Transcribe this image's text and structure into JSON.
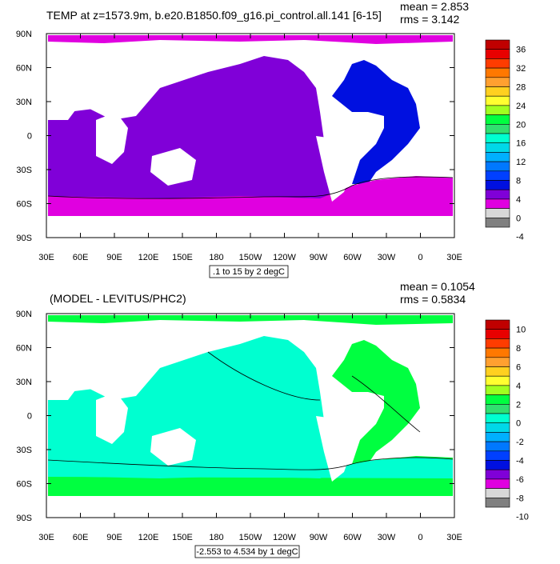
{
  "panels": [
    {
      "title": "TEMP at z=1573.9m, b.e20.B1850.f09_g16.pi_control.all.141 [6-15]",
      "mean": "mean = 2.853",
      "rms": "rms = 3.142",
      "contour_note": ".1 to 15 by 2 degC",
      "colorbar": {
        "labels": [
          "36",
          "32",
          "28",
          "24",
          "20",
          "16",
          "12",
          "8",
          "4",
          "0",
          "-4"
        ],
        "colors": [
          "#c00000",
          "#e80000",
          "#ff3c00",
          "#ff7800",
          "#ffa030",
          "#ffd020",
          "#ffff30",
          "#a0ff20",
          "#00ff40",
          "#30e070",
          "#00ffd0",
          "#00d8e8",
          "#00b0ff",
          "#0078ff",
          "#0040ff",
          "#0010e0",
          "#8000d8",
          "#e000e0",
          "#d8d8d8",
          "#808080"
        ]
      }
    },
    {
      "title": "(MODEL - LEVITUS/PHC2)",
      "mean": "mean = 0.1054",
      "rms": "rms = 0.5834",
      "contour_note": "-2.553 to 4.534 by 1 degC",
      "colorbar": {
        "labels": [
          "10",
          "8",
          "6",
          "4",
          "2",
          "0",
          "-2",
          "-4",
          "-6",
          "-8",
          "-10"
        ],
        "colors": [
          "#c00000",
          "#e80000",
          "#ff3c00",
          "#ff7800",
          "#ffa030",
          "#ffd020",
          "#ffff30",
          "#a0ff20",
          "#00ff40",
          "#30e070",
          "#00ffd0",
          "#00d8e8",
          "#00b0ff",
          "#0078ff",
          "#0040ff",
          "#0010e0",
          "#8000d8",
          "#e000e0",
          "#d8d8d8",
          "#808080"
        ]
      }
    }
  ],
  "axes": {
    "lat_labels": [
      "90N",
      "60N",
      "30N",
      "0",
      "30S",
      "60S",
      "90S"
    ],
    "lon_labels": [
      "30E",
      "60E",
      "90E",
      "120E",
      "150E",
      "180",
      "150W",
      "120W",
      "90W",
      "60W",
      "30W",
      "0",
      "30E"
    ]
  },
  "field_colors": {
    "panel1": {
      "arctic": "#e000e0",
      "pacific": "#8000d8",
      "atlantic": "#0010e0",
      "southern": "#e000e0"
    },
    "panel2": {
      "arctic": "#00ff40",
      "pacific": "#00ffd0",
      "atlantic": "#00ff40",
      "southern": "#00ff40",
      "southern_band": "#00ffd0"
    }
  }
}
